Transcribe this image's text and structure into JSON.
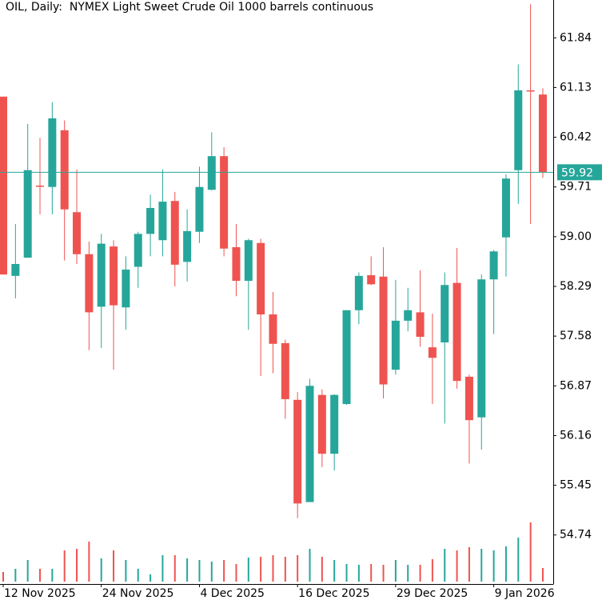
{
  "chart_data": {
    "type": "candlestick",
    "title": "OIL, Daily:  NYMEX Light Sweet Crude Oil 1000 barrels continuous",
    "categories": [
      "12 Nov 2025",
      null,
      null,
      null,
      null,
      null,
      null,
      null,
      "24 Nov 2025",
      null,
      null,
      null,
      null,
      null,
      null,
      null,
      "4 Dec 2025",
      null,
      null,
      null,
      null,
      null,
      null,
      null,
      "16 Dec 2025",
      null,
      null,
      null,
      null,
      null,
      null,
      null,
      "29 Dec 2025",
      null,
      null,
      null,
      null,
      null,
      null,
      null,
      "9 Jan 2026",
      null,
      null,
      null,
      null
    ],
    "open": [
      61.0,
      58.44,
      58.7,
      59.73,
      59.71,
      60.52,
      59.35,
      58.75,
      58.0,
      58.86,
      57.99,
      58.57,
      59.04,
      58.95,
      59.51,
      58.64,
      59.07,
      59.67,
      60.15,
      58.85,
      58.37,
      58.91,
      57.89,
      57.48,
      56.67,
      55.21,
      56.74,
      55.9,
      56.61,
      57.95,
      58.45,
      58.43,
      57.1,
      57.8,
      57.92,
      57.42,
      57.49,
      58.34,
      57.0,
      56.42,
      58.39,
      58.99,
      59.95,
      61.09,
      61.03
    ],
    "high": [
      61.0,
      59.18,
      60.61,
      60.41,
      60.92,
      60.66,
      59.96,
      58.93,
      59.04,
      58.95,
      58.72,
      59.07,
      59.6,
      59.96,
      59.64,
      59.39,
      60.0,
      60.49,
      60.28,
      59.18,
      58.97,
      58.97,
      58.21,
      57.53,
      56.78,
      56.97,
      56.82,
      56.75,
      57.95,
      58.49,
      58.72,
      58.85,
      58.38,
      58.27,
      58.52,
      57.9,
      58.49,
      58.84,
      57.03,
      58.46,
      58.81,
      59.89,
      61.46,
      62.32,
      61.12
    ],
    "low": [
      58.46,
      58.12,
      58.7,
      59.32,
      59.32,
      58.66,
      58.61,
      57.38,
      57.41,
      57.1,
      57.67,
      58.27,
      58.72,
      58.72,
      58.29,
      58.36,
      58.91,
      59.66,
      58.72,
      58.15,
      57.67,
      57.01,
      57.05,
      56.4,
      54.98,
      55.21,
      55.71,
      55.66,
      56.6,
      57.75,
      58.31,
      56.69,
      57.03,
      57.65,
      57.43,
      56.61,
      56.33,
      56.83,
      55.76,
      55.96,
      57.61,
      58.43,
      59.47,
      59.18,
      59.84
    ],
    "close": [
      58.46,
      58.61,
      59.95,
      59.72,
      60.69,
      59.39,
      58.75,
      57.92,
      58.9,
      58.02,
      58.53,
      59.04,
      59.41,
      59.5,
      58.6,
      59.08,
      59.71,
      60.15,
      58.83,
      58.37,
      58.95,
      57.89,
      57.47,
      56.68,
      55.19,
      56.87,
      55.9,
      56.74,
      57.95,
      58.44,
      58.32,
      56.89,
      57.8,
      57.95,
      57.57,
      57.27,
      58.31,
      56.94,
      56.38,
      58.39,
      58.79,
      59.83,
      61.09,
      61.08,
      59.92
    ],
    "volume": [
      12,
      16,
      27,
      16,
      16,
      39,
      41,
      50,
      29,
      39,
      27,
      16,
      9,
      33,
      33,
      29,
      27,
      25,
      27,
      22,
      30,
      31,
      33,
      31,
      33,
      41,
      31,
      27,
      22,
      21,
      22,
      21,
      27,
      21,
      21,
      28,
      41,
      39,
      43,
      41,
      39,
      44,
      55,
      74,
      17
    ],
    "up_color": "#26a69a",
    "down_color": "#ef5350",
    "ylim": [
      54.04,
      62.38
    ],
    "yticks": [
      54.74,
      55.45,
      56.16,
      56.87,
      57.58,
      58.29,
      {
        "value": 59,
        "label": "59.00"
      },
      59.71,
      60.42,
      61.13,
      61.84
    ],
    "grid": false
  }
}
